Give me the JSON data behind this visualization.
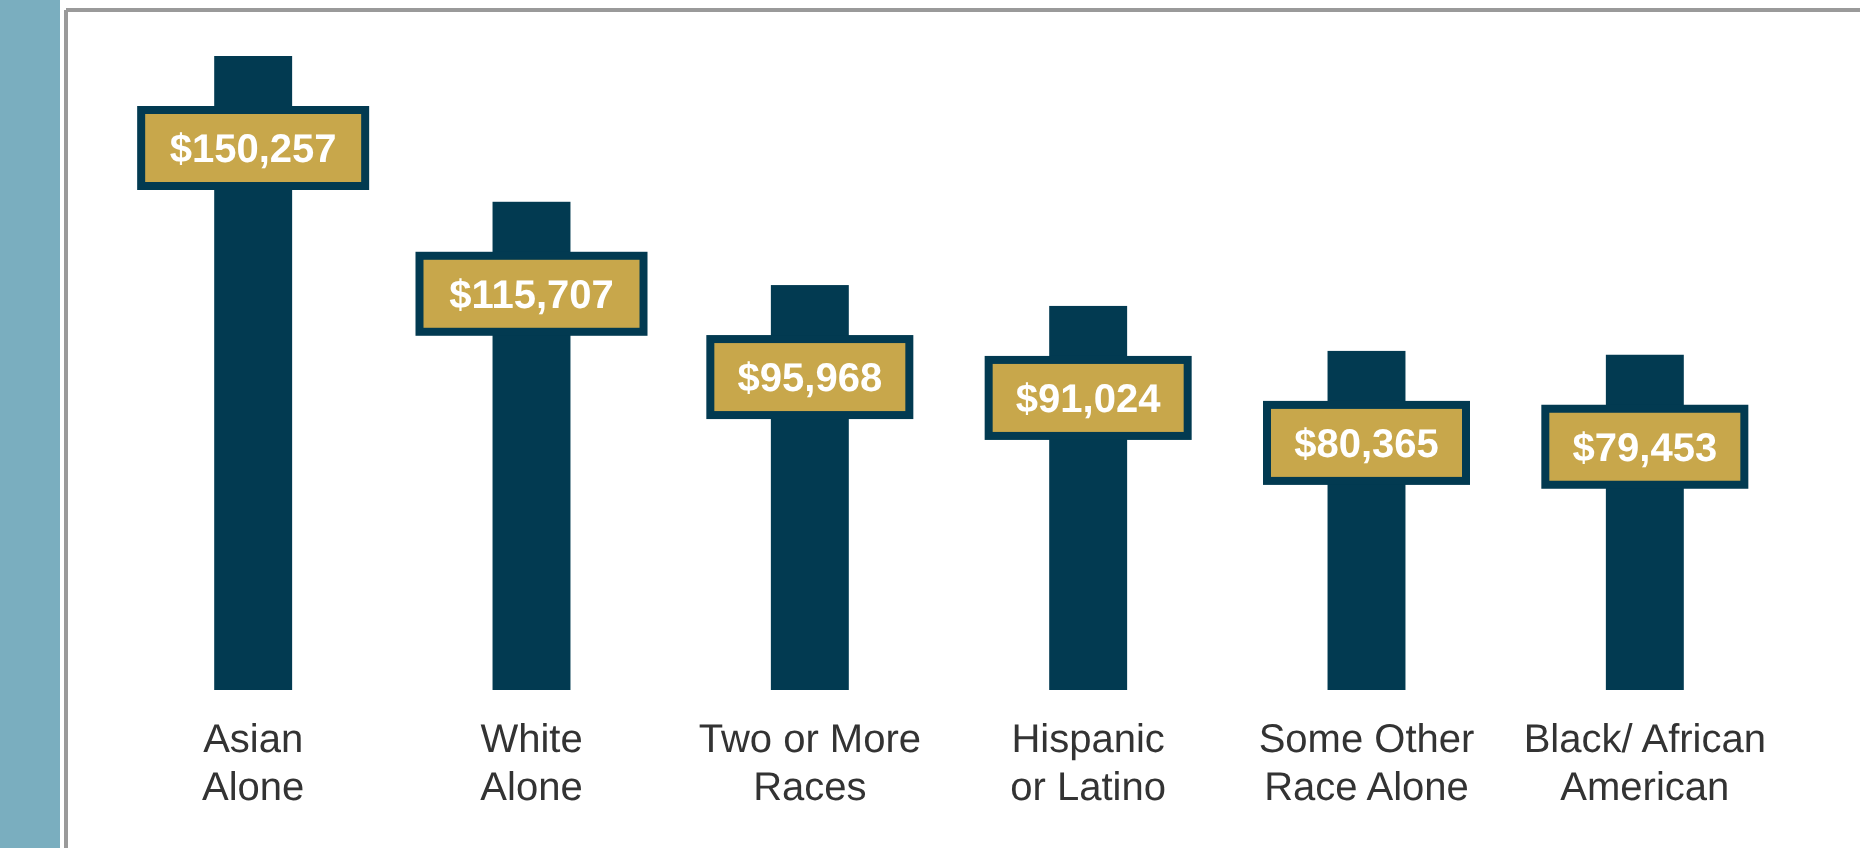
{
  "chart_data": {
    "type": "bar",
    "categories": [
      "Asian\nAlone",
      "White\nAlone",
      "Two or More\nRaces",
      "Hispanic\nor Latino",
      "Some Other\nRace Alone",
      "Black/ African\nAmerican"
    ],
    "values": [
      150257,
      115707,
      95968,
      91024,
      80365,
      79453
    ],
    "value_labels": [
      "$150,257",
      "$115,707",
      "$95,968",
      "$91,024",
      "$80,365",
      "$79,453"
    ],
    "color": "#023a51"
  }
}
